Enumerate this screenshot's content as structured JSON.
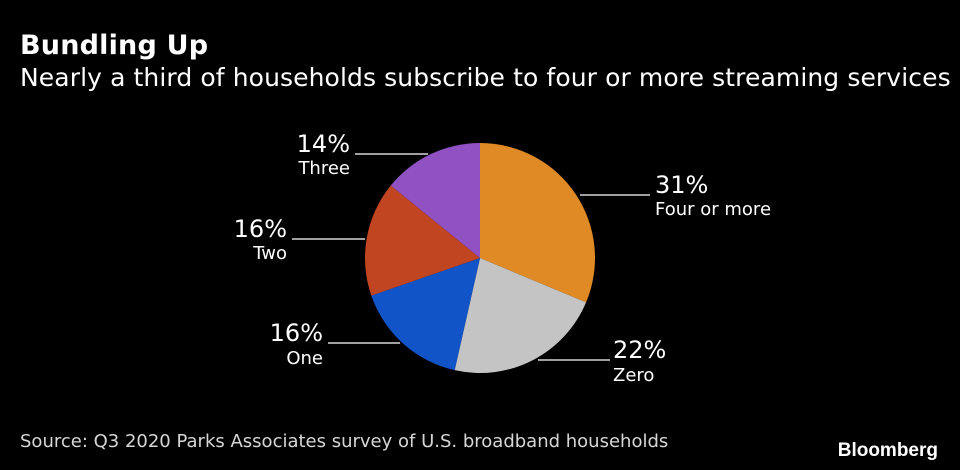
{
  "header": {
    "title": "Bundling Up",
    "subtitle": "Nearly a third of households subscribe to four or more streaming services"
  },
  "chart_data": {
    "type": "pie",
    "slices": [
      {
        "label": "Four or more",
        "value": 31,
        "value_label": "31%",
        "color": "#e08a25"
      },
      {
        "label": "Zero",
        "value": 22,
        "value_label": "22%",
        "color": "#c4c4c4"
      },
      {
        "label": "One",
        "value": 16,
        "value_label": "16%",
        "color": "#1154c7"
      },
      {
        "label": "Two",
        "value": 16,
        "value_label": "16%",
        "color": "#c14520"
      },
      {
        "label": "Three",
        "value": 14,
        "value_label": "14%",
        "color": "#9051c2"
      }
    ],
    "start": "12 o'clock",
    "direction": "clockwise"
  },
  "footer": {
    "source": "Source: Q3 2020 Parks Associates survey of U.S. broadband households",
    "brand": "Bloomberg"
  }
}
